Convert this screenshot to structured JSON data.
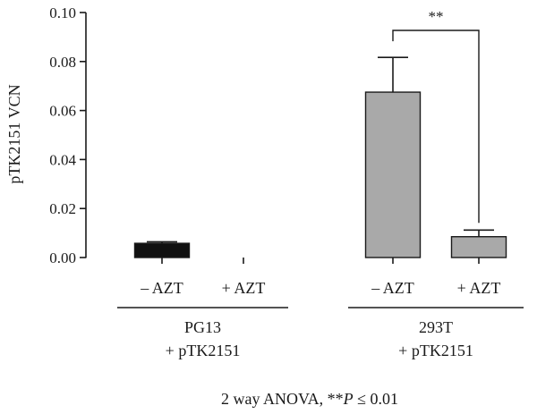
{
  "chart_data": {
    "type": "bar",
    "ylabel": "pTK2151 VCN",
    "ylim": [
      0,
      0.1
    ],
    "yticks": [
      "0.00",
      "0.02",
      "0.04",
      "0.06",
      "0.08",
      "0.10"
    ],
    "ytick_values": [
      0,
      0.02,
      0.04,
      0.06,
      0.08,
      0.1
    ],
    "categories": [
      "– AZT",
      "+ AZT",
      "– AZT",
      "+ AZT"
    ],
    "groups": [
      {
        "line1": "PG13",
        "line2": "+ pTK2151",
        "categories": [
          0,
          1
        ]
      },
      {
        "line1": "293T",
        "line2": "+ pTK2151",
        "categories": [
          2,
          3
        ]
      }
    ],
    "values": [
      0.0058,
      0,
      0.0675,
      0.0085
    ],
    "errors": [
      0.0006,
      0,
      0.0142,
      0.0027
    ],
    "bar_colors": [
      "#111111",
      "#111111",
      "#a9a9a9",
      "#a9a9a9"
    ],
    "significance": {
      "between": [
        2,
        3
      ],
      "label": "**"
    },
    "footnote": {
      "prefix": "2 way ANOVA, **",
      "italic": "P",
      "suffix": " ≤ 0.01"
    }
  }
}
